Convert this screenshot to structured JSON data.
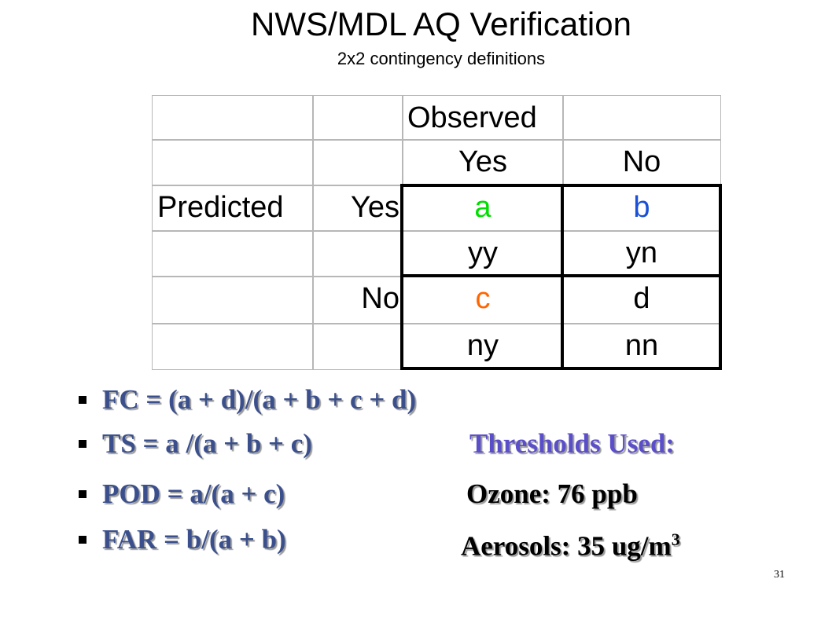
{
  "slide": {
    "title": "NWS/MDL AQ Verification",
    "subtitle": "2x2 contingency definitions",
    "page_number": "31"
  },
  "table": {
    "observed": "Observed",
    "obs_yes": "Yes",
    "obs_no": "No",
    "predicted": "Predicted",
    "pred_yes": "Yes",
    "pred_no": "No",
    "a": "a",
    "b": "b",
    "c": "c",
    "d": "d",
    "yy": "yy",
    "yn": "yn",
    "ny": "ny",
    "nn": "nn",
    "colors": {
      "a": "#00dd00",
      "b": "#1a4fd6",
      "c": "#ff6600",
      "d": "#000000"
    }
  },
  "formulas": {
    "fc": "FC = (a + d)/(a + b + c + d)",
    "ts": "TS = a /(a + b + c)",
    "pod": "POD = a/(a + c)",
    "far": "FAR = b/(a + b)",
    "colors": {
      "formula": "#3a4f8c",
      "thresholds_heading": "#5b4fc9"
    }
  },
  "thresholds": {
    "heading": "Thresholds Used:",
    "ozone": "Ozone: 76 ppb",
    "aerosols": "Aerosols: 35 ug/m",
    "aerosols_sup": "3"
  }
}
